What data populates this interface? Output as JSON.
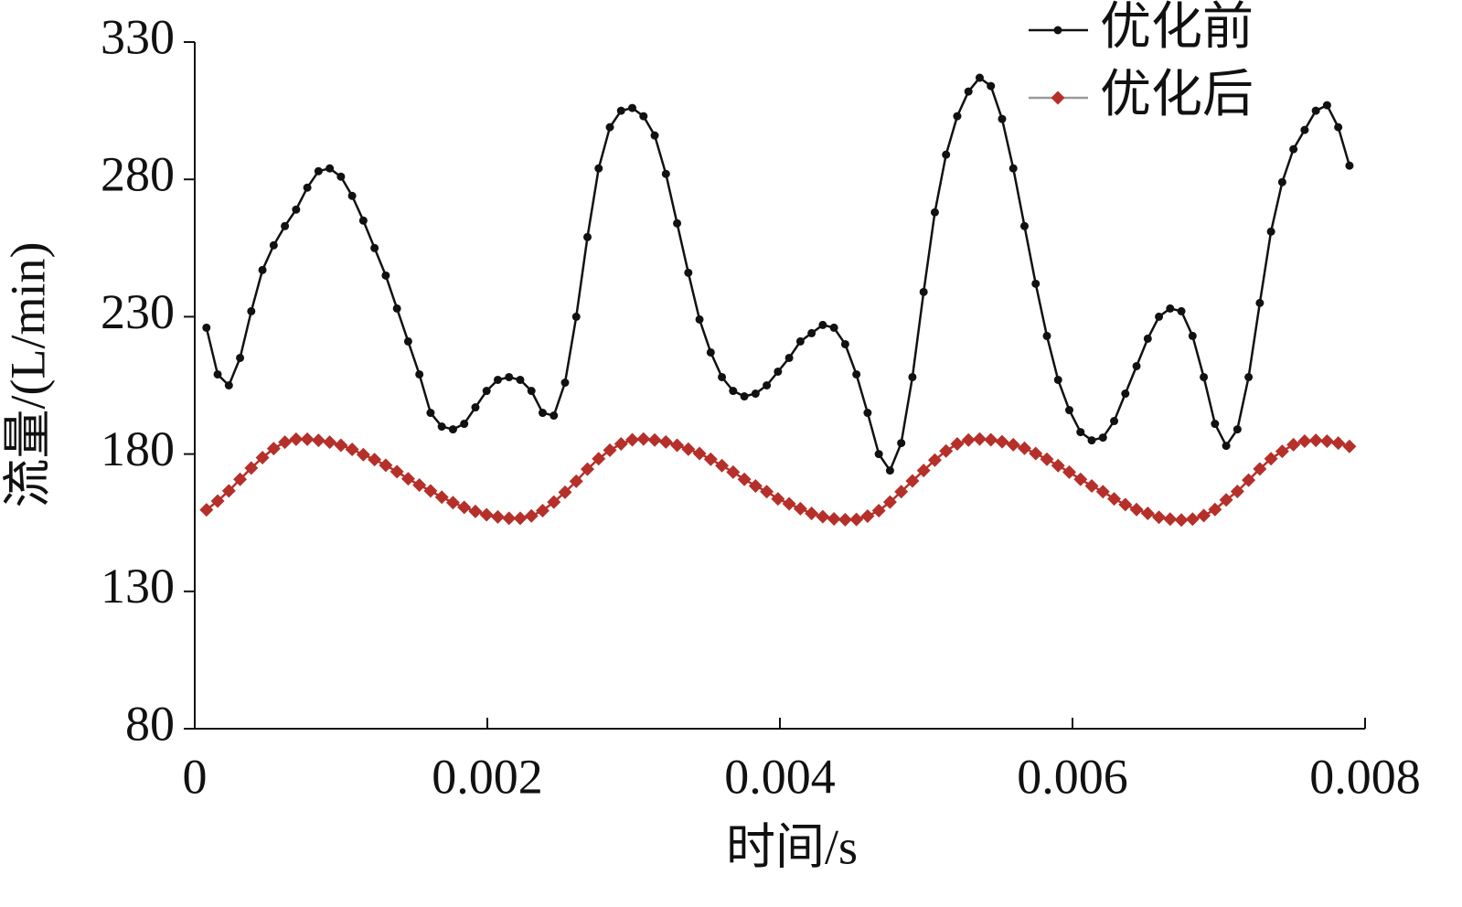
{
  "chart_data": {
    "type": "line",
    "xlabel": "时间/s",
    "ylabel": "流量/(L/min)",
    "x": [
      8e-05,
      0.0001566,
      0.0002332,
      0.0003098,
      0.0003864,
      0.000463,
      0.0005396,
      0.0006162,
      0.0006928,
      0.0007694,
      0.000846,
      0.0009226,
      0.0009992,
      0.0010758,
      0.0011524,
      0.001229,
      0.0013056,
      0.0013822,
      0.0014588,
      0.0015354,
      0.001612,
      0.0016886,
      0.0017652,
      0.0018418,
      0.0019184,
      0.001995,
      0.0020716,
      0.0021482,
      0.0022248,
      0.0023014,
      0.002378,
      0.0024546,
      0.0025312,
      0.0026078,
      0.0026844,
      0.002761,
      0.0028376,
      0.0029142,
      0.0029908,
      0.0030674,
      0.003144,
      0.0032206,
      0.0032972,
      0.0033738,
      0.0034504,
      0.003527,
      0.0036036,
      0.0036802,
      0.0037568,
      0.0038334,
      0.00391,
      0.0039866,
      0.0040632,
      0.0041398,
      0.0042164,
      0.004293,
      0.0043696,
      0.0044462,
      0.0045228,
      0.0045994,
      0.004676,
      0.0047526,
      0.0048292,
      0.0049058,
      0.0049824,
      0.005059,
      0.0051356,
      0.0052122,
      0.0052888,
      0.0053654,
      0.005442,
      0.0055186,
      0.0055952,
      0.0056718,
      0.0057484,
      0.005825,
      0.0059016,
      0.0059782,
      0.0060548,
      0.0061314,
      0.006208,
      0.0062846,
      0.0063612,
      0.0064378,
      0.0065144,
      0.006591,
      0.0066676,
      0.0067442,
      0.0068208,
      0.0068974,
      0.006974,
      0.0070506,
      0.0071272,
      0.0072038,
      0.0072804,
      0.007357,
      0.0074336,
      0.0075102,
      0.0075868,
      0.0076634,
      0.00774,
      0.0078166,
      0.0078932
    ],
    "series": [
      {
        "name": "优化前",
        "color": "#111111",
        "marker": "circle",
        "values": [
          226,
          209,
          205,
          215,
          232,
          247,
          256,
          263,
          269,
          277,
          283,
          284,
          281,
          274,
          265,
          255,
          245,
          233,
          221,
          209,
          195,
          190,
          189,
          191,
          197,
          203,
          207,
          208,
          207,
          203,
          195,
          194,
          206,
          230,
          259,
          284,
          299,
          305,
          306,
          303,
          296,
          282,
          264,
          246,
          229,
          217,
          208,
          203,
          201,
          202,
          205,
          210,
          215,
          221,
          224,
          227,
          226,
          220,
          209,
          195,
          180,
          174,
          184,
          208,
          239,
          268,
          289,
          303,
          312,
          317,
          314,
          302,
          284,
          263,
          242,
          223,
          207,
          196,
          188,
          185,
          186,
          192,
          202,
          212,
          222,
          230,
          233,
          232,
          223,
          208,
          191,
          183,
          189,
          208,
          235,
          261,
          279,
          291,
          298,
          305,
          307,
          299,
          285
        ]
      },
      {
        "name": "优化后",
        "color": "#b5302a",
        "marker": "diamond",
        "values": [
          159.7,
          162.9,
          166.6,
          170.8,
          174.9,
          178.7,
          182.0,
          184.3,
          185.4,
          185.4,
          185.0,
          184.3,
          183.2,
          181.7,
          179.8,
          178.0,
          175.9,
          173.6,
          171.0,
          168.7,
          166.6,
          164.3,
          162.3,
          160.6,
          159.1,
          157.9,
          157.1,
          156.6,
          156.6,
          157.5,
          159.4,
          162.5,
          166.1,
          170.1,
          174.5,
          178.3,
          181.4,
          183.7,
          185.2,
          185.5,
          185.1,
          184.4,
          183.2,
          181.8,
          180.2,
          178.1,
          175.8,
          173.4,
          170.8,
          168.4,
          166.3,
          163.7,
          161.9,
          160.1,
          158.4,
          157.2,
          156.4,
          156.1,
          156.2,
          157.4,
          159.4,
          162.5,
          166.3,
          170.2,
          174.0,
          177.8,
          181.1,
          183.7,
          185.1,
          185.5,
          185.2,
          184.5,
          183.4,
          182.1,
          180.2,
          178.1,
          175.8,
          173.4,
          170.8,
          168.4,
          166.3,
          163.7,
          161.6,
          159.8,
          158.4,
          157.0,
          156.3,
          156.0,
          156.3,
          157.6,
          159.8,
          163.3,
          166.4,
          170.5,
          174.6,
          178.3,
          181.0,
          183.4,
          184.7,
          185.0,
          184.7,
          184.0,
          182.8
        ]
      }
    ],
    "xlim": [
      0,
      0.008
    ],
    "ylim": [
      80,
      330
    ],
    "xticks": [
      0,
      0.002,
      0.004,
      0.006,
      0.008
    ],
    "yticks": [
      80,
      130,
      180,
      230,
      280,
      330
    ],
    "legend": "upper right"
  }
}
